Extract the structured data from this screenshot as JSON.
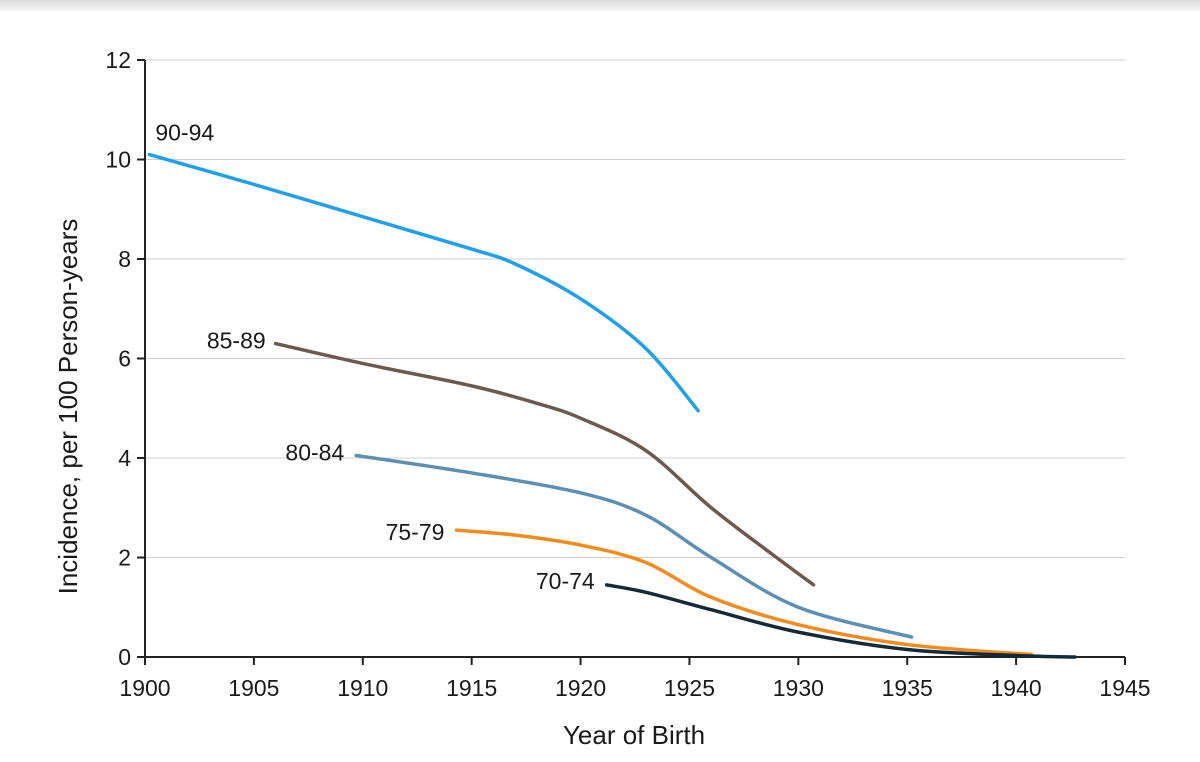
{
  "chart_data": {
    "type": "line",
    "title": "",
    "xlabel": "Year of Birth",
    "ylabel": "Incidence, per 100 Person-years",
    "xlim": [
      1900,
      1945
    ],
    "ylim": [
      0,
      12
    ],
    "x_ticks": [
      1900,
      1905,
      1910,
      1915,
      1920,
      1925,
      1930,
      1935,
      1940,
      1945
    ],
    "y_ticks": [
      0,
      2,
      4,
      6,
      8,
      10,
      12
    ],
    "grid": "horizontal",
    "legend": "inline labels",
    "series": [
      {
        "name": "90-94",
        "color": "#1ea0ec",
        "points": [
          [
            1900.2,
            10.1
          ],
          [
            1905,
            9.5
          ],
          [
            1910,
            8.85
          ],
          [
            1915,
            8.2
          ],
          [
            1917,
            7.9
          ],
          [
            1920,
            7.2
          ],
          [
            1923,
            6.2
          ],
          [
            1925.4,
            4.95
          ]
        ]
      },
      {
        "name": "85-89",
        "color": "#6e5a4c",
        "points": [
          [
            1906,
            6.3
          ],
          [
            1910,
            5.9
          ],
          [
            1915,
            5.45
          ],
          [
            1918,
            5.1
          ],
          [
            1920,
            4.8
          ],
          [
            1923,
            4.15
          ],
          [
            1926,
            3.0
          ],
          [
            1929,
            2.0
          ],
          [
            1930.7,
            1.45
          ]
        ]
      },
      {
        "name": "80-84",
        "color": "#5b8fb3",
        "points": [
          [
            1909.7,
            4.05
          ],
          [
            1915,
            3.7
          ],
          [
            1920,
            3.3
          ],
          [
            1923,
            2.85
          ],
          [
            1926,
            2.0
          ],
          [
            1930,
            1.0
          ],
          [
            1935.2,
            0.4
          ]
        ]
      },
      {
        "name": "75-79",
        "color": "#f28a1c",
        "points": [
          [
            1914.3,
            2.55
          ],
          [
            1917,
            2.45
          ],
          [
            1920,
            2.25
          ],
          [
            1923,
            1.9
          ],
          [
            1926,
            1.2
          ],
          [
            1930,
            0.65
          ],
          [
            1935,
            0.25
          ],
          [
            1940.7,
            0.05
          ]
        ]
      },
      {
        "name": "70-74",
        "color": "#132a3a",
        "points": [
          [
            1921.2,
            1.45
          ],
          [
            1923,
            1.3
          ],
          [
            1926,
            0.95
          ],
          [
            1930,
            0.5
          ],
          [
            1935,
            0.15
          ],
          [
            1940,
            0.03
          ],
          [
            1942.7,
            0.0
          ]
        ]
      }
    ]
  }
}
